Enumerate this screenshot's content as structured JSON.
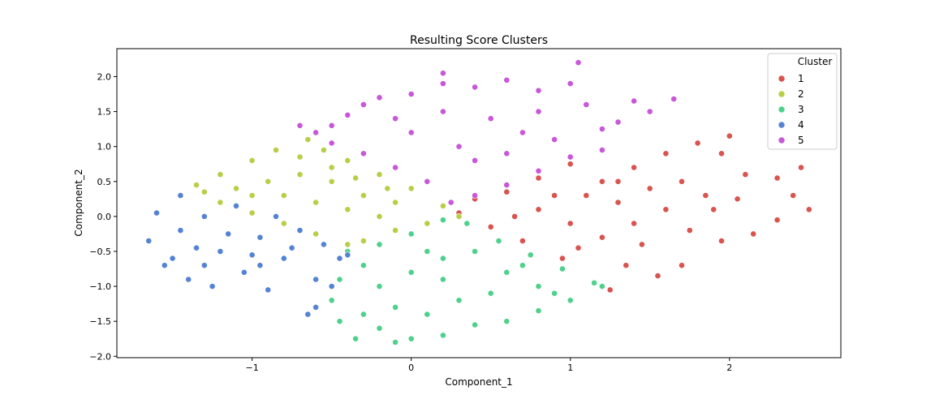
{
  "chart_data": {
    "type": "scatter",
    "title": "Resulting Score Clusters",
    "xlabel": "Component_1",
    "ylabel": "Component_2",
    "xlim": [
      -1.85,
      2.7
    ],
    "ylim": [
      -2.02,
      2.4
    ],
    "xticks": [
      -1,
      0,
      1,
      2
    ],
    "xtick_labels": [
      "−1",
      "0",
      "1",
      "2"
    ],
    "yticks": [
      -2.0,
      -1.5,
      -1.0,
      -0.5,
      0.0,
      0.5,
      1.0,
      1.5,
      2.0
    ],
    "ytick_labels": [
      "−2.0",
      "−1.5",
      "−1.0",
      "−0.5",
      "0.0",
      "0.5",
      "1.0",
      "1.5",
      "2.0"
    ],
    "grid": false,
    "legend": {
      "title": "Cluster",
      "position": "top-right",
      "entries": [
        {
          "label": "1",
          "color": "#d9534f"
        },
        {
          "label": "2",
          "color": "#b7cf48"
        },
        {
          "label": "3",
          "color": "#4fd18b"
        },
        {
          "label": "4",
          "color": "#5583d4"
        },
        {
          "label": "5",
          "color": "#c957d9"
        }
      ]
    },
    "series": [
      {
        "name": "1",
        "color": "#d9534f",
        "points": [
          [
            1.0,
            0.75
          ],
          [
            1.2,
            0.5
          ],
          [
            1.4,
            0.7
          ],
          [
            1.6,
            0.9
          ],
          [
            1.8,
            1.05
          ],
          [
            2.0,
            1.15
          ],
          [
            1.95,
            0.9
          ],
          [
            2.1,
            0.6
          ],
          [
            2.3,
            0.55
          ],
          [
            2.45,
            0.7
          ],
          [
            2.5,
            0.1
          ],
          [
            2.4,
            0.3
          ],
          [
            2.3,
            -0.05
          ],
          [
            2.15,
            -0.25
          ],
          [
            1.95,
            -0.35
          ],
          [
            1.7,
            -0.7
          ],
          [
            1.55,
            -0.85
          ],
          [
            1.35,
            -0.7
          ],
          [
            1.25,
            -1.05
          ],
          [
            1.15,
            -0.95
          ],
          [
            0.95,
            -0.6
          ],
          [
            0.7,
            -0.35
          ],
          [
            0.5,
            -0.15
          ],
          [
            0.3,
            0.05
          ],
          [
            0.4,
            0.25
          ],
          [
            0.6,
            0.35
          ],
          [
            0.8,
            0.55
          ],
          [
            1.1,
            0.3
          ],
          [
            1.3,
            0.2
          ],
          [
            1.5,
            0.4
          ],
          [
            1.7,
            0.5
          ],
          [
            1.85,
            0.3
          ],
          [
            1.6,
            0.1
          ],
          [
            1.4,
            -0.1
          ],
          [
            1.2,
            -0.3
          ],
          [
            1.0,
            -0.1
          ],
          [
            0.8,
            0.1
          ],
          [
            1.05,
            -0.45
          ],
          [
            1.45,
            -0.4
          ],
          [
            1.75,
            -0.2
          ],
          [
            1.9,
            0.1
          ],
          [
            2.05,
            0.25
          ],
          [
            0.65,
            0.0
          ],
          [
            0.9,
            0.3
          ],
          [
            1.3,
            0.5
          ]
        ]
      },
      {
        "name": "2",
        "color": "#b7cf48",
        "points": [
          [
            -1.35,
            0.45
          ],
          [
            -1.2,
            0.6
          ],
          [
            -1.0,
            0.8
          ],
          [
            -0.85,
            0.95
          ],
          [
            -0.65,
            1.1
          ],
          [
            -0.55,
            0.95
          ],
          [
            -0.4,
            0.8
          ],
          [
            -0.2,
            0.6
          ],
          [
            0.0,
            0.4
          ],
          [
            0.2,
            0.15
          ],
          [
            0.3,
            0.0
          ],
          [
            0.1,
            -0.1
          ],
          [
            -0.1,
            -0.2
          ],
          [
            -0.3,
            -0.35
          ],
          [
            -0.4,
            -0.4
          ],
          [
            -0.6,
            -0.25
          ],
          [
            -0.8,
            -0.1
          ],
          [
            -1.0,
            0.05
          ],
          [
            -1.2,
            0.2
          ],
          [
            -1.3,
            0.35
          ],
          [
            -1.1,
            0.4
          ],
          [
            -0.9,
            0.5
          ],
          [
            -0.7,
            0.6
          ],
          [
            -0.5,
            0.5
          ],
          [
            -0.3,
            0.3
          ],
          [
            -0.1,
            0.2
          ],
          [
            -0.6,
            0.2
          ],
          [
            -0.8,
            0.3
          ],
          [
            -0.4,
            0.1
          ],
          [
            -0.2,
            0.0
          ],
          [
            -1.0,
            0.3
          ],
          [
            -0.7,
            0.85
          ],
          [
            -0.5,
            0.7
          ],
          [
            -0.35,
            0.55
          ],
          [
            -0.15,
            0.4
          ]
        ]
      },
      {
        "name": "3",
        "color": "#4fd18b",
        "points": [
          [
            -0.4,
            -0.5
          ],
          [
            -0.45,
            -0.9
          ],
          [
            -0.5,
            -1.2
          ],
          [
            -0.45,
            -1.5
          ],
          [
            -0.35,
            -1.75
          ],
          [
            -0.2,
            -1.6
          ],
          [
            -0.1,
            -1.8
          ],
          [
            0.0,
            -1.75
          ],
          [
            0.2,
            -1.7
          ],
          [
            0.4,
            -1.55
          ],
          [
            0.6,
            -1.5
          ],
          [
            0.8,
            -1.35
          ],
          [
            1.0,
            -1.2
          ],
          [
            1.2,
            -1.0
          ],
          [
            1.15,
            -0.95
          ],
          [
            0.95,
            -0.75
          ],
          [
            0.75,
            -0.55
          ],
          [
            0.55,
            -0.35
          ],
          [
            0.35,
            -0.1
          ],
          [
            0.2,
            -0.05
          ],
          [
            0.0,
            -0.25
          ],
          [
            -0.2,
            -0.4
          ],
          [
            -0.3,
            -0.7
          ],
          [
            -0.2,
            -1.0
          ],
          [
            0.0,
            -0.8
          ],
          [
            0.2,
            -0.6
          ],
          [
            0.4,
            -0.5
          ],
          [
            0.6,
            -0.8
          ],
          [
            0.8,
            -1.0
          ],
          [
            0.3,
            -1.2
          ],
          [
            0.1,
            -1.4
          ],
          [
            -0.1,
            -1.3
          ],
          [
            0.5,
            -1.1
          ],
          [
            0.7,
            -0.7
          ],
          [
            0.1,
            -0.5
          ],
          [
            -0.3,
            -1.4
          ],
          [
            0.9,
            -1.1
          ],
          [
            0.2,
            -0.9
          ]
        ]
      },
      {
        "name": "4",
        "color": "#5583d4",
        "points": [
          [
            -1.65,
            -0.35
          ],
          [
            -1.6,
            0.05
          ],
          [
            -1.55,
            -0.7
          ],
          [
            -1.5,
            -0.6
          ],
          [
            -1.45,
            0.3
          ],
          [
            -1.4,
            -0.9
          ],
          [
            -1.3,
            0.0
          ],
          [
            -1.25,
            -1.0
          ],
          [
            -1.2,
            -0.5
          ],
          [
            -1.1,
            0.15
          ],
          [
            -1.05,
            -0.8
          ],
          [
            -0.95,
            -0.3
          ],
          [
            -0.9,
            -1.05
          ],
          [
            -0.8,
            -0.6
          ],
          [
            -0.7,
            -0.2
          ],
          [
            -0.6,
            -0.9
          ],
          [
            -0.55,
            -0.4
          ],
          [
            -0.45,
            -0.6
          ],
          [
            -0.5,
            -1.0
          ],
          [
            -0.6,
            -1.3
          ],
          [
            -0.65,
            -1.4
          ],
          [
            -0.4,
            -0.55
          ],
          [
            -1.35,
            -0.45
          ],
          [
            -1.15,
            -0.25
          ],
          [
            -1.0,
            -0.55
          ],
          [
            -0.85,
            0.0
          ],
          [
            -1.3,
            -0.7
          ],
          [
            -1.45,
            -0.2
          ],
          [
            -0.75,
            -0.45
          ],
          [
            -0.95,
            -0.7
          ]
        ]
      },
      {
        "name": "5",
        "color": "#c957d9",
        "points": [
          [
            -0.7,
            1.3
          ],
          [
            -0.6,
            1.2
          ],
          [
            -0.5,
            1.3
          ],
          [
            -0.4,
            1.45
          ],
          [
            -0.3,
            1.6
          ],
          [
            -0.2,
            1.7
          ],
          [
            0.0,
            1.75
          ],
          [
            0.2,
            1.9
          ],
          [
            0.2,
            2.05
          ],
          [
            0.4,
            1.85
          ],
          [
            0.6,
            1.95
          ],
          [
            0.8,
            1.8
          ],
          [
            1.0,
            1.9
          ],
          [
            1.05,
            2.2
          ],
          [
            1.1,
            1.6
          ],
          [
            1.2,
            1.25
          ],
          [
            1.3,
            1.35
          ],
          [
            1.4,
            1.65
          ],
          [
            1.5,
            1.5
          ],
          [
            1.65,
            1.68
          ],
          [
            1.2,
            0.95
          ],
          [
            1.0,
            0.85
          ],
          [
            0.8,
            0.65
          ],
          [
            0.6,
            0.45
          ],
          [
            0.4,
            0.3
          ],
          [
            0.25,
            0.2
          ],
          [
            0.1,
            0.5
          ],
          [
            -0.1,
            0.7
          ],
          [
            -0.3,
            0.9
          ],
          [
            -0.5,
            1.05
          ],
          [
            0.0,
            1.2
          ],
          [
            0.3,
            1.0
          ],
          [
            0.5,
            1.4
          ],
          [
            0.7,
            1.2
          ],
          [
            0.9,
            1.1
          ],
          [
            0.2,
            1.5
          ],
          [
            -0.1,
            1.4
          ],
          [
            0.4,
            0.8
          ],
          [
            0.6,
            0.9
          ],
          [
            0.8,
            1.5
          ]
        ]
      }
    ]
  }
}
